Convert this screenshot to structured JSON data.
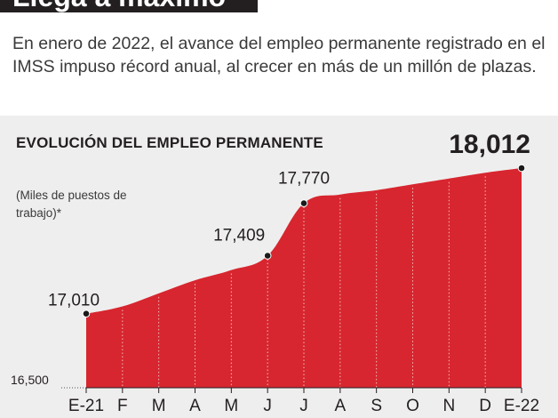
{
  "title": "Llega a máximo",
  "intro": "En enero de 2022, el avance del empleo permanente registrado en el IMSS impuso récord anual, al crecer en más de un millón de plazas.",
  "colors": {
    "area_fill": "#d7262f",
    "panel_bg": "#efeeee",
    "marker": "#1a1a1a",
    "text": "#231f20"
  },
  "chart_data": {
    "type": "area",
    "title": "EVOLUCIÓN DEL EMPLEO PERMANENTE",
    "subtitle": "(Miles de puestos de trabajo)*",
    "categories": [
      "E-21",
      "F",
      "M",
      "A",
      "M",
      "J",
      "J",
      "A",
      "S",
      "O",
      "N",
      "D",
      "E-22"
    ],
    "values": [
      17010,
      17060,
      17150,
      17240,
      17310,
      17409,
      17770,
      17830,
      17860,
      17900,
      17940,
      17980,
      18012
    ],
    "labeled_points": [
      {
        "index": 0,
        "label": "17,010"
      },
      {
        "index": 5,
        "label": "17,409"
      },
      {
        "index": 6,
        "label": "17,770"
      },
      {
        "index": 12,
        "label": "18,012"
      }
    ],
    "y_axis_label": "16,500",
    "ylim": [
      16500,
      18012
    ],
    "grid": false
  }
}
